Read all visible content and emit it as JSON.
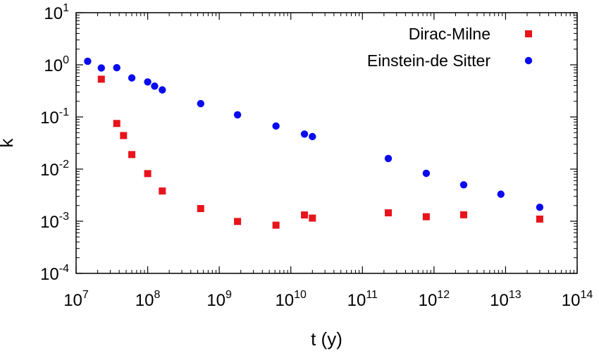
{
  "chart_data": {
    "type": "scatter",
    "xlabel": "t (y)",
    "ylabel": "k",
    "x_scale": "log",
    "y_scale": "log",
    "xlim": [
      10000000.0,
      100000000000000.0
    ],
    "ylim": [
      0.0001,
      10
    ],
    "x_ticks": [
      {
        "base": "10",
        "exp": "7"
      },
      {
        "base": "10",
        "exp": "8"
      },
      {
        "base": "10",
        "exp": "9"
      },
      {
        "base": "10",
        "exp": "10"
      },
      {
        "base": "10",
        "exp": "11"
      },
      {
        "base": "10",
        "exp": "12"
      },
      {
        "base": "10",
        "exp": "13"
      },
      {
        "base": "10",
        "exp": "14"
      }
    ],
    "y_ticks": [
      {
        "base": "10",
        "exp": "1"
      },
      {
        "base": "10",
        "exp": "0"
      },
      {
        "base": "10",
        "exp": "-1"
      },
      {
        "base": "10",
        "exp": "-2"
      },
      {
        "base": "10",
        "exp": "-3"
      },
      {
        "base": "10",
        "exp": "-4"
      }
    ],
    "grid": false,
    "legend_position": "top-right",
    "series": [
      {
        "name": "Dirac-Milne",
        "marker": "square",
        "color": "#e8141c",
        "x": [
          22500000.0,
          37000000.0,
          46000000.0,
          60000000.0,
          100000000.0,
          160000000.0,
          550000000.0,
          1800000000.0,
          6200000000.0,
          15500000000.0,
          20000000000.0,
          230000000000.0,
          780000000000.0,
          2600000000000.0,
          30000000000000.0
        ],
        "y": [
          0.53,
          0.075,
          0.044,
          0.019,
          0.0082,
          0.0038,
          0.00175,
          0.00099,
          0.00084,
          0.00132,
          0.00115,
          0.00145,
          0.00122,
          0.00133,
          0.0011
        ]
      },
      {
        "name": "Einstein-de Sitter",
        "marker": "circle",
        "color": "#0a0aef",
        "x": [
          14500000.0,
          22500000.0,
          37000000.0,
          60000000.0,
          100000000.0,
          125000000.0,
          160000000.0,
          550000000.0,
          1800000000.0,
          6200000000.0,
          15500000000.0,
          20000000000.0,
          230000000000.0,
          780000000000.0,
          2600000000000.0,
          8600000000000.0,
          30000000000000.0
        ],
        "y": [
          1.17,
          0.87,
          0.88,
          0.56,
          0.47,
          0.39,
          0.33,
          0.18,
          0.11,
          0.067,
          0.047,
          0.042,
          0.016,
          0.0083,
          0.005,
          0.0033,
          0.00185
        ]
      }
    ]
  }
}
